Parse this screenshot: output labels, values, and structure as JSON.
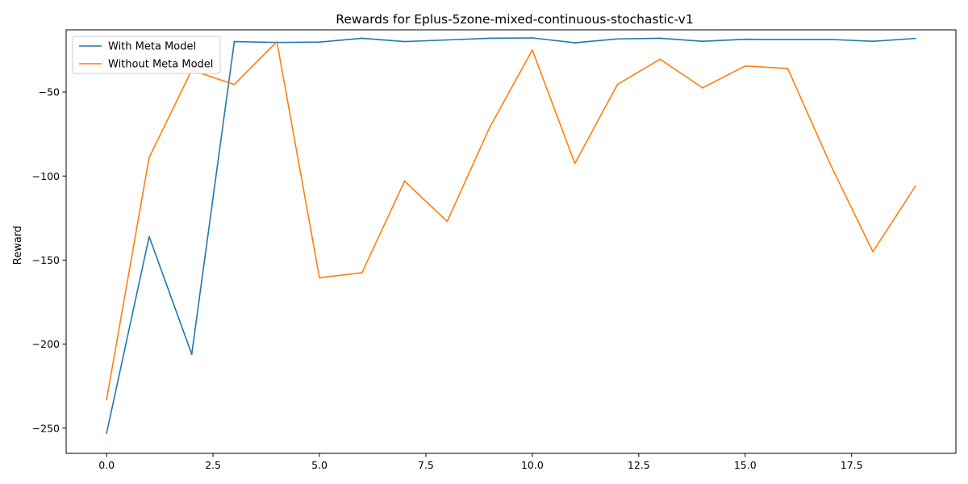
{
  "chart_data": {
    "type": "line",
    "title": "Rewards for Eplus-5zone-mixed-continuous-stochastic-v1",
    "xlabel": "",
    "ylabel": "Reward",
    "xlim": [
      -0.95,
      19.95
    ],
    "ylim": [
      -265,
      -13
    ],
    "xticks": [
      0.0,
      2.5,
      5.0,
      7.5,
      10.0,
      12.5,
      15.0,
      17.5
    ],
    "xtick_labels": [
      "0.0",
      "2.5",
      "5.0",
      "7.5",
      "10.0",
      "12.5",
      "15.0",
      "17.5"
    ],
    "yticks": [
      -250,
      -200,
      -150,
      -100,
      -50
    ],
    "ytick_labels": [
      "−250",
      "−200",
      "−150",
      "−100",
      "−50"
    ],
    "grid": false,
    "legend": "top-left",
    "x": [
      0,
      1,
      2,
      3,
      4,
      5,
      6,
      7,
      8,
      9,
      10,
      11,
      12,
      13,
      14,
      15,
      16,
      17,
      18,
      19
    ],
    "series": [
      {
        "name": "With Meta Model",
        "color": "#1f77b4",
        "values": [
          -253,
          -136,
          -206,
          -20,
          -20.5,
          -20.3,
          -18,
          -20,
          -19,
          -18,
          -17.8,
          -20.7,
          -18.4,
          -18,
          -19.8,
          -18.6,
          -18.8,
          -18.7,
          -19.8,
          -18.1
        ]
      },
      {
        "name": "Without Meta Model",
        "color": "#ff7f0e",
        "values": [
          -233,
          -89,
          -37,
          -45.5,
          -20,
          -160.5,
          -157.5,
          -103,
          -127,
          -71,
          -25,
          -92.5,
          -45.5,
          -30.5,
          -47.5,
          -34.5,
          -36,
          -93,
          -145,
          -106
        ]
      }
    ]
  }
}
